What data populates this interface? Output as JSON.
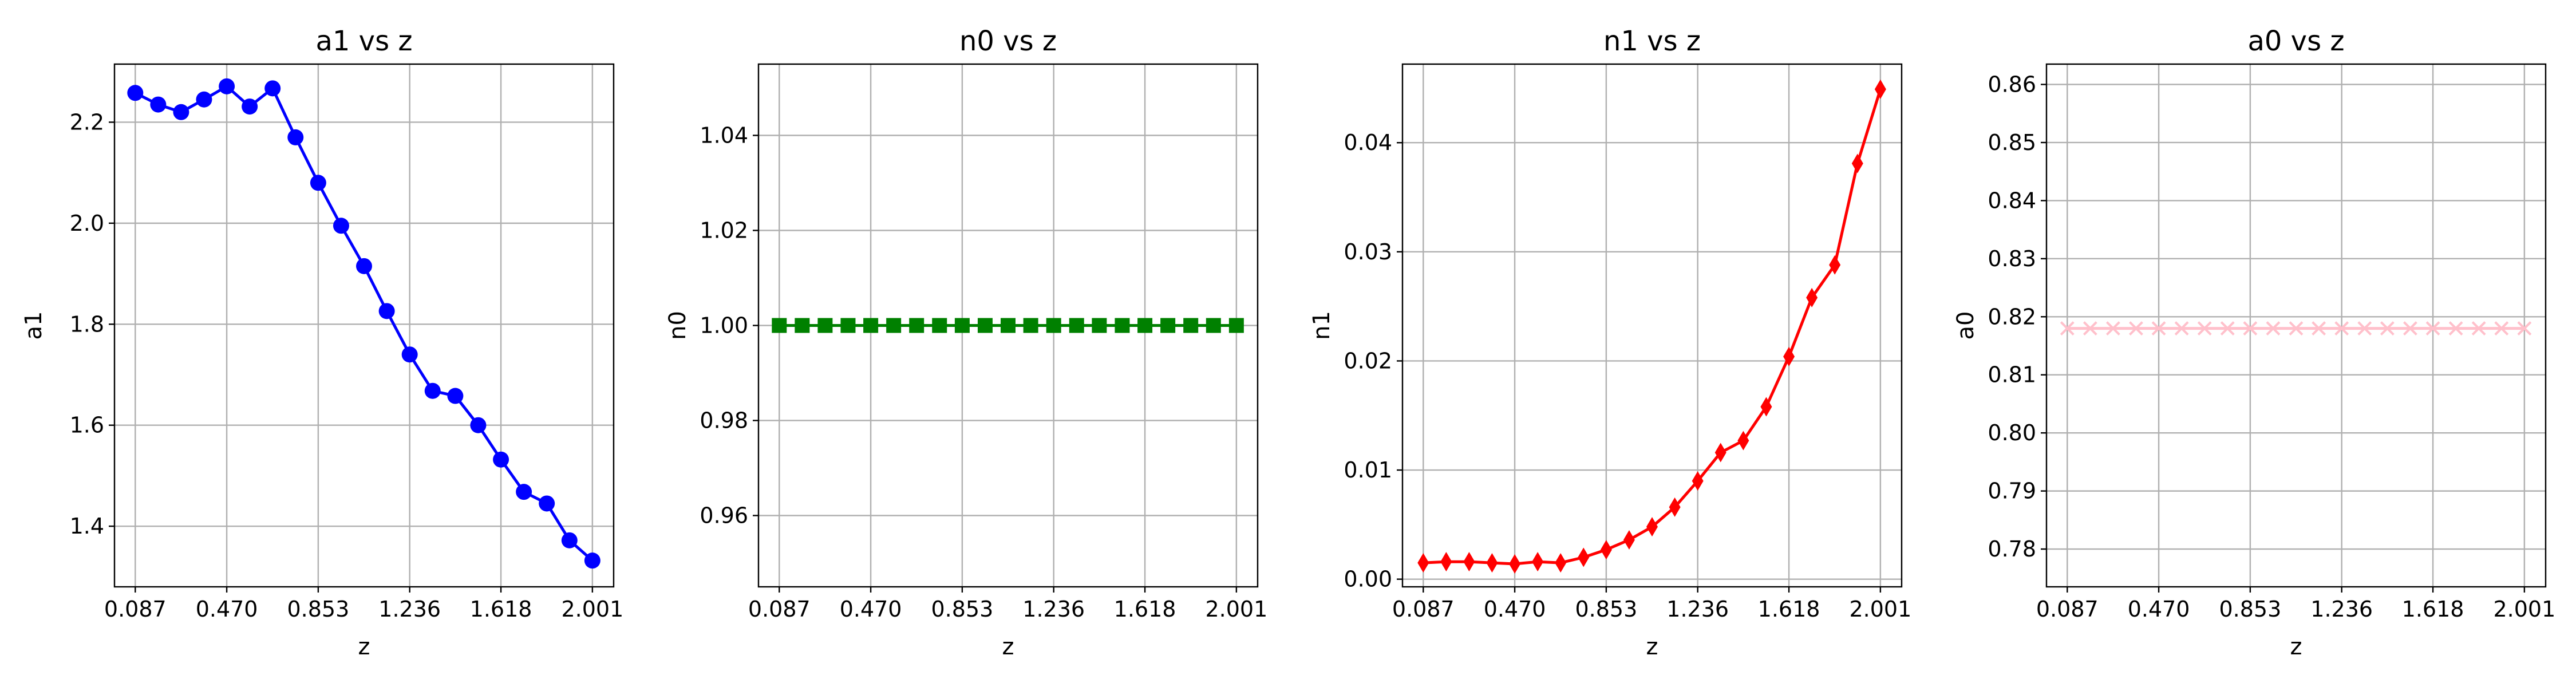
{
  "figure": {
    "background": "#ffffff"
  },
  "chart_data": [
    {
      "type": "line",
      "title": "a1 vs z",
      "xlabel": "z",
      "ylabel": "a1",
      "xlim": [
        0.0,
        2.09
      ],
      "ylim": [
        1.28,
        2.315
      ],
      "xticks": [
        0.087,
        0.47,
        0.853,
        1.236,
        1.618,
        2.001
      ],
      "xtick_labels": [
        "0.087",
        "0.470",
        "0.853",
        "1.236",
        "1.618",
        "2.001"
      ],
      "yticks": [
        1.4,
        1.6,
        1.8,
        2.0,
        2.2
      ],
      "ytick_labels": [
        "1.4",
        "1.6",
        "1.8",
        "2.0",
        "2.2"
      ],
      "grid": true,
      "series": [
        {
          "color": "#0000ff",
          "marker": "circle",
          "x": [
            0.087,
            0.183,
            0.279,
            0.375,
            0.47,
            0.566,
            0.662,
            0.758,
            0.853,
            0.949,
            1.045,
            1.14,
            1.236,
            1.332,
            1.427,
            1.523,
            1.618,
            1.714,
            1.81,
            1.905,
            2.001
          ],
          "values": [
            2.258,
            2.235,
            2.22,
            2.245,
            2.271,
            2.231,
            2.267,
            2.17,
            2.08,
            1.995,
            1.915,
            1.826,
            1.74,
            1.668,
            1.658,
            1.6,
            1.532,
            1.468,
            1.445,
            1.372,
            1.332
          ]
        }
      ]
    },
    {
      "type": "line",
      "title": "n0 vs z",
      "xlabel": "z",
      "ylabel": "n0",
      "xlim": [
        0.0,
        2.09
      ],
      "ylim": [
        0.945,
        1.055
      ],
      "xticks": [
        0.087,
        0.47,
        0.853,
        1.236,
        1.618,
        2.001
      ],
      "xtick_labels": [
        "0.087",
        "0.470",
        "0.853",
        "1.236",
        "1.618",
        "2.001"
      ],
      "yticks": [
        0.96,
        0.98,
        1.0,
        1.02,
        1.04
      ],
      "ytick_labels": [
        "0.96",
        "0.98",
        "1.00",
        "1.02",
        "1.04"
      ],
      "grid": true,
      "series": [
        {
          "color": "#008000",
          "marker": "square",
          "x": [
            0.087,
            0.183,
            0.279,
            0.375,
            0.47,
            0.566,
            0.662,
            0.758,
            0.853,
            0.949,
            1.045,
            1.14,
            1.236,
            1.332,
            1.427,
            1.523,
            1.618,
            1.714,
            1.81,
            1.905,
            2.001
          ],
          "values": [
            1.0,
            1.0,
            1.0,
            1.0,
            1.0,
            1.0,
            1.0,
            1.0,
            1.0,
            1.0,
            1.0,
            1.0,
            1.0,
            1.0,
            1.0,
            1.0,
            1.0,
            1.0,
            1.0,
            1.0,
            1.0
          ]
        }
      ]
    },
    {
      "type": "line",
      "title": "n1 vs z",
      "xlabel": "z",
      "ylabel": "n1",
      "xlim": [
        0.0,
        2.09
      ],
      "ylim": [
        -0.0007,
        0.0472
      ],
      "xticks": [
        0.087,
        0.47,
        0.853,
        1.236,
        1.618,
        2.001
      ],
      "xtick_labels": [
        "0.087",
        "0.470",
        "0.853",
        "1.236",
        "1.618",
        "2.001"
      ],
      "yticks": [
        0.0,
        0.01,
        0.02,
        0.03,
        0.04
      ],
      "ytick_labels": [
        "0.00",
        "0.01",
        "0.02",
        "0.03",
        "0.04"
      ],
      "grid": true,
      "series": [
        {
          "color": "#ff0000",
          "marker": "thin-diamond",
          "x": [
            0.087,
            0.183,
            0.279,
            0.375,
            0.47,
            0.566,
            0.662,
            0.758,
            0.853,
            0.949,
            1.045,
            1.14,
            1.236,
            1.332,
            1.427,
            1.523,
            1.618,
            1.714,
            1.81,
            1.905,
            2.001
          ],
          "values": [
            0.0015,
            0.0016,
            0.0016,
            0.0015,
            0.0014,
            0.0016,
            0.0015,
            0.002,
            0.0027,
            0.0036,
            0.0048,
            0.0066,
            0.009,
            0.0116,
            0.0127,
            0.0158,
            0.0204,
            0.0258,
            0.0288,
            0.0381,
            0.0449
          ]
        }
      ]
    },
    {
      "type": "line",
      "title": "a0 vs z",
      "xlabel": "z",
      "ylabel": "a0",
      "xlim": [
        0.0,
        2.09
      ],
      "ylim": [
        0.7735,
        0.8635
      ],
      "xticks": [
        0.087,
        0.47,
        0.853,
        1.236,
        1.618,
        2.001
      ],
      "xtick_labels": [
        "0.087",
        "0.470",
        "0.853",
        "1.236",
        "1.618",
        "2.001"
      ],
      "yticks": [
        0.78,
        0.79,
        0.8,
        0.81,
        0.82,
        0.83,
        0.84,
        0.85,
        0.86
      ],
      "ytick_labels": [
        "0.78",
        "0.79",
        "0.80",
        "0.81",
        "0.82",
        "0.83",
        "0.84",
        "0.85",
        "0.86"
      ],
      "grid": true,
      "series": [
        {
          "color": "#ffc0cb",
          "marker": "x",
          "x": [
            0.087,
            0.183,
            0.279,
            0.375,
            0.47,
            0.566,
            0.662,
            0.758,
            0.853,
            0.949,
            1.045,
            1.14,
            1.236,
            1.332,
            1.427,
            1.523,
            1.618,
            1.714,
            1.81,
            1.905,
            2.001
          ],
          "values": [
            0.818,
            0.818,
            0.818,
            0.818,
            0.818,
            0.818,
            0.818,
            0.818,
            0.818,
            0.818,
            0.818,
            0.818,
            0.818,
            0.818,
            0.818,
            0.818,
            0.818,
            0.818,
            0.818,
            0.818,
            0.818
          ]
        }
      ]
    }
  ]
}
